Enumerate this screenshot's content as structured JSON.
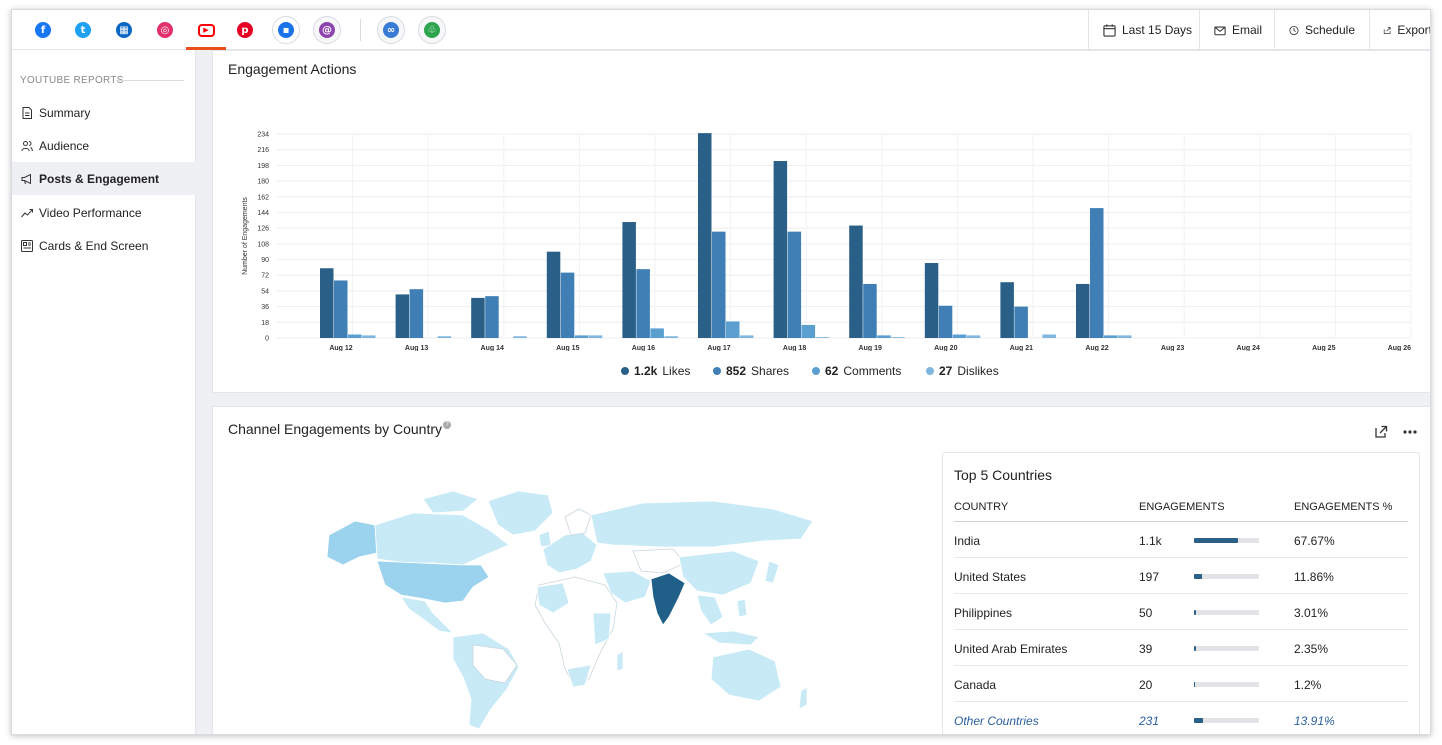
{
  "colors": {
    "accent": "#e94e1b",
    "likes": "#2a5f88",
    "shares": "#3f7fb5",
    "comments": "#5a9fd0",
    "dislikes": "#7fb6df",
    "map_base": "#c8eaf7",
    "map_dark": "#9bd2ee",
    "map_india": "#1f5f88"
  },
  "networks": [
    {
      "icon": "facebook-icon",
      "color": "#1877f2",
      "glyph": "f"
    },
    {
      "icon": "twitter-icon",
      "color": "#1da1f2",
      "glyph": "t"
    },
    {
      "icon": "linkedin-icon",
      "color": "#0a66c2",
      "glyph": "▦"
    },
    {
      "icon": "instagram-icon",
      "color": "#e1306c",
      "glyph": "◎"
    },
    {
      "icon": "youtube-icon",
      "color": "#ff0000",
      "glyph": "▶"
    },
    {
      "icon": "pinterest-icon",
      "color": "#e60023",
      "glyph": "p"
    },
    {
      "icon": "google-business-icon",
      "color": "#1a73e8",
      "glyph": "▪"
    },
    {
      "icon": "threads-icon",
      "color": "#8e44ad",
      "glyph": "@"
    },
    {
      "icon": "link-icon",
      "color": "#3a7bd5",
      "glyph": "∞"
    },
    {
      "icon": "leaf-icon",
      "color": "#2ea44f",
      "glyph": "♧"
    }
  ],
  "toolbar": {
    "date_range": "Last 15 Days",
    "email": "Email",
    "schedule": "Schedule",
    "export": "Export"
  },
  "sidebar": {
    "heading": "YOUTUBE REPORTS",
    "items": [
      {
        "label": "Summary",
        "icon": "document-icon"
      },
      {
        "label": "Audience",
        "icon": "users-icon"
      },
      {
        "label": "Posts & Engagement",
        "icon": "megaphone-icon",
        "active": true
      },
      {
        "label": "Video Performance",
        "icon": "trend-icon"
      },
      {
        "label": "Cards & End Screen",
        "icon": "cards-icon"
      }
    ]
  },
  "engagement": {
    "title": "Engagement Actions",
    "legend": [
      {
        "value": "1.2k",
        "label": "Likes"
      },
      {
        "value": "852",
        "label": "Shares"
      },
      {
        "value": "62",
        "label": "Comments"
      },
      {
        "value": "27",
        "label": "Dislikes"
      }
    ]
  },
  "chart_data": {
    "type": "bar",
    "ylabel": "Number of Engagements",
    "ylim": [
      0,
      234
    ],
    "yticks": [
      0,
      18,
      36,
      54,
      72,
      90,
      108,
      126,
      144,
      162,
      180,
      198,
      216,
      234
    ],
    "categories": [
      "Aug 12",
      "Aug 13",
      "Aug 14",
      "Aug 15",
      "Aug 16",
      "Aug 17",
      "Aug 18",
      "Aug 19",
      "Aug 20",
      "Aug 21",
      "Aug 22",
      "Aug 23",
      "Aug 24",
      "Aug 25",
      "Aug 26"
    ],
    "series": [
      {
        "name": "Likes",
        "values": [
          80,
          50,
          46,
          99,
          133,
          235,
          203,
          129,
          86,
          64,
          62,
          0,
          0,
          0,
          0
        ]
      },
      {
        "name": "Shares",
        "values": [
          66,
          56,
          48,
          75,
          79,
          122,
          122,
          62,
          37,
          36,
          149,
          0,
          0,
          0,
          0
        ]
      },
      {
        "name": "Comments",
        "values": [
          4,
          0,
          0,
          3,
          11,
          19,
          15,
          3,
          4,
          0,
          3,
          0,
          0,
          0,
          0
        ]
      },
      {
        "name": "Dislikes",
        "values": [
          3,
          2,
          2,
          3,
          2,
          3,
          1,
          1,
          3,
          4,
          3,
          0,
          0,
          0,
          0
        ]
      }
    ],
    "grid": true,
    "legend": "bottom"
  },
  "country": {
    "title": "Channel Engagements by Country",
    "help": "?",
    "top_title": "Top 5 Countries",
    "headers": {
      "country": "COUNTRY",
      "engagements": "ENGAGEMENTS",
      "percent": "ENGAGEMENTS %"
    },
    "rows": [
      {
        "name": "India",
        "count": "1.1k",
        "percent": "67.67%",
        "share": 0.6767
      },
      {
        "name": "United States",
        "count": "197",
        "percent": "11.86%",
        "share": 0.1186
      },
      {
        "name": "Philippines",
        "count": "50",
        "percent": "3.01%",
        "share": 0.0301
      },
      {
        "name": "United Arab Emirates",
        "count": "39",
        "percent": "2.35%",
        "share": 0.0235
      },
      {
        "name": "Canada",
        "count": "20",
        "percent": "1.2%",
        "share": 0.012
      }
    ],
    "other": {
      "name": "Other Countries",
      "count": "231",
      "percent": "13.91%",
      "share": 0.1391
    }
  }
}
